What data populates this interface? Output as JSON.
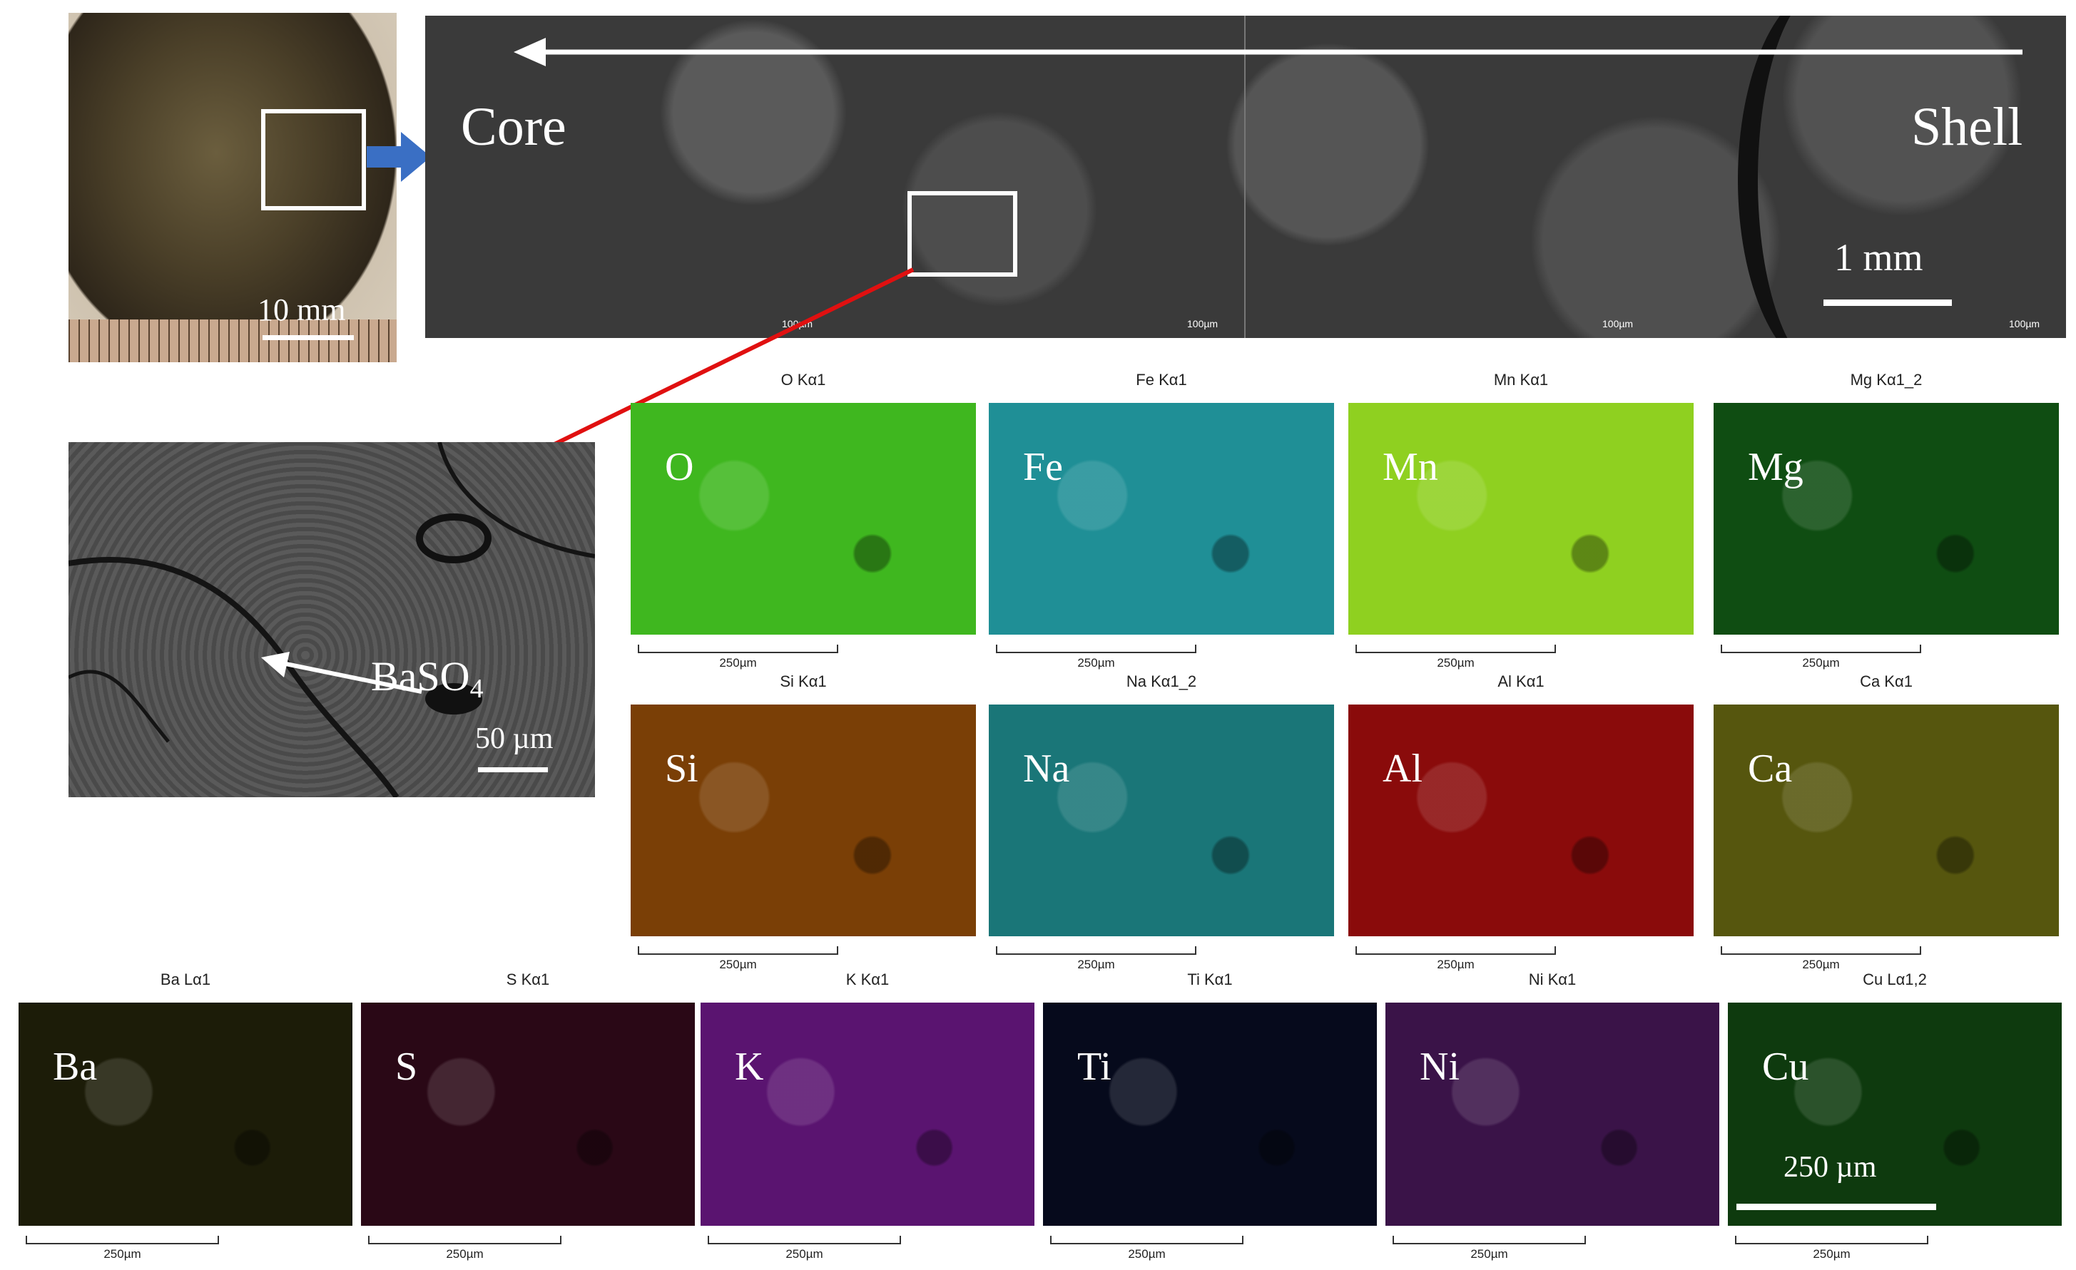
{
  "overview": {
    "photo_scale": "10 mm",
    "core_label": "Core",
    "shell_label": "Shell",
    "sem_scale": "1 mm",
    "tiny_scale": "100µm"
  },
  "zoom": {
    "mineral_label_main": "BaSO",
    "mineral_label_sub": "4",
    "scale": "50 µm"
  },
  "maps": [
    {
      "title": "O Kα1",
      "label": "O",
      "color": "#3fb71f"
    },
    {
      "title": "Fe Kα1",
      "label": "Fe",
      "color": "#1f8f96"
    },
    {
      "title": "Mn Kα1",
      "label": "Mn",
      "color": "#8fd020"
    },
    {
      "title": "Mg Kα1_2",
      "label": "Mg",
      "color": "#0f4d12"
    },
    {
      "title": "Si Kα1",
      "label": "Si",
      "color": "#7a3f06"
    },
    {
      "title": "Na Kα1_2",
      "label": "Na",
      "color": "#1a7678"
    },
    {
      "title": "Al Kα1",
      "label": "Al",
      "color": "#8a0b0b"
    },
    {
      "title": "Ca Kα1",
      "label": "Ca",
      "color": "#56560e"
    },
    {
      "title": "Ba Lα1",
      "label": "Ba",
      "color": "#1c1c08"
    },
    {
      "title": "S Kα1",
      "label": "S",
      "color": "#2a0816"
    },
    {
      "title": "K Kα1",
      "label": "K",
      "color": "#5a1470"
    },
    {
      "title": "Ti Kα1",
      "label": "Ti",
      "color": "#060a1c"
    },
    {
      "title": "Ni Kα1",
      "label": "Ni",
      "color": "#3a1348"
    },
    {
      "title": "Cu Lα1,2",
      "label": "Cu",
      "color": "#0e3a0e"
    }
  ],
  "map_scale_caption": "250µm",
  "cu_scale": "250 µm"
}
